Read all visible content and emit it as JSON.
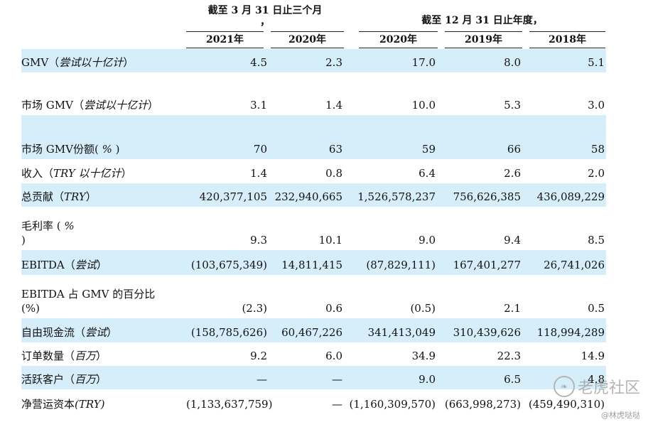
{
  "header": {
    "group1_line1": "截至 3 月 31 日止三个月",
    "group1_line2": "，",
    "group2": "截至 12 月 31 日止年度，",
    "columns": [
      "2021年",
      "2020年",
      "2020年",
      "2019年",
      "2018年"
    ]
  },
  "rows": [
    {
      "label1": "GMV（",
      "label_it": "尝试以十亿计",
      "label2": "）",
      "values": [
        "4.5",
        "2.3",
        "17.0",
        "8.0",
        "5.1"
      ]
    },
    {
      "label1": "市场 GMV（",
      "label_it": "尝试以十亿计",
      "label2": "）",
      "values": [
        "3.1",
        "1.4",
        "10.0",
        "5.3",
        "3.0"
      ]
    },
    {
      "label1": "市场 GMV份额( ",
      "label_it": "%",
      "label2": " )",
      "values": [
        "70",
        "63",
        "59",
        "66",
        "58"
      ]
    },
    {
      "label1": "收入（",
      "label_it": "TRY 以十亿计",
      "label2": "）",
      "values": [
        "1.4",
        "0.8",
        "6.4",
        "2.6",
        "2.0"
      ]
    },
    {
      "label1": "总贡献（",
      "label_it": "TRY",
      "label2": "）",
      "values": [
        "420,377,105",
        "232,940,665",
        "1,526,578,237",
        "756,626,385",
        "436,089,229"
      ]
    },
    {
      "label1": "毛利率 ( ",
      "label_it": "%",
      "label2": " )",
      "values": [
        "9.3",
        "10.1",
        "9.0",
        "9.4",
        "8.5"
      ]
    },
    {
      "label1": "EBITDA（",
      "label_it": "尝试",
      "label2": "）",
      "values": [
        "(103,675,349)",
        "14,811,415",
        "(87,829,111)",
        "167,401,277",
        "26,741,026"
      ]
    },
    {
      "label1": "EBITDA 占 GMV 的百分比 (%)",
      "label_it": "",
      "label2": "",
      "values": [
        "(2.3)",
        "0.6",
        "(0.5)",
        "2.1",
        "0.5"
      ]
    },
    {
      "label1": "自由现金流（",
      "label_it": "尝试",
      "label2": "）",
      "values": [
        "(158,785,626)",
        "60,467,226",
        "341,413,049",
        "310,439,626",
        "118,994,289"
      ]
    },
    {
      "label1": "订单数量（",
      "label_it": "百万",
      "label2": "）",
      "values": [
        "9.2",
        "6.0",
        "34.9",
        "22.3",
        "14.9"
      ]
    },
    {
      "label1": "活跃客户（",
      "label_it": "百万",
      "label2": "）",
      "values": [
        "—",
        "—",
        "9.0",
        "6.5",
        "4.8"
      ]
    },
    {
      "label1": "净营运资本",
      "label_it": "(TRY)",
      "label2": "",
      "values": [
        "(1,133,637,759)",
        "—",
        "(1,160,309,570)",
        "(663,998,273)",
        "(459,490,310)"
      ]
    }
  ],
  "watermark": {
    "text": "老虎社区",
    "sub": "@林虎哒哒"
  },
  "colors": {
    "shade": "#d6eefa"
  }
}
